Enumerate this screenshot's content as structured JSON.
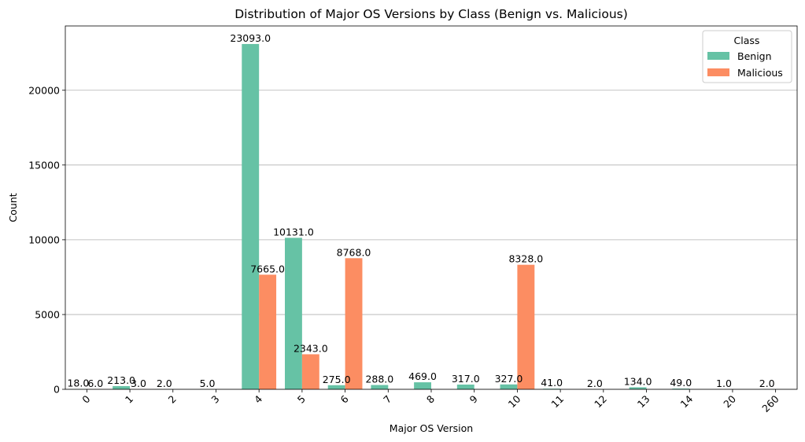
{
  "chart_data": {
    "type": "bar",
    "title": "Distribution of Major OS Versions by Class (Benign vs. Malicious)",
    "xlabel": "Major OS Version",
    "ylabel": "Count",
    "ylim": [
      0,
      24300
    ],
    "yticks": [
      0,
      5000,
      10000,
      15000,
      20000
    ],
    "grid": "y",
    "categories": [
      "0",
      "1",
      "2",
      "3",
      "4",
      "5",
      "6",
      "7",
      "8",
      "9",
      "10",
      "11",
      "12",
      "13",
      "14",
      "20",
      "260"
    ],
    "series": [
      {
        "name": "Benign",
        "color": "#66c2a5",
        "values": [
          18,
          213,
          2,
          5,
          23093,
          10131,
          275,
          288,
          469,
          317,
          327,
          41,
          2,
          134,
          49,
          1,
          2
        ],
        "labels": [
          "18.0",
          "213.0",
          "2.0",
          "5.0",
          "23093.0",
          "10131.0",
          "275.0",
          "288.0",
          "469.0",
          "317.0",
          "327.0",
          "41.0",
          "2.0",
          "134.0",
          "49.0",
          "1.0",
          "2.0"
        ]
      },
      {
        "name": "Malicious",
        "color": "#fc8d62",
        "values": [
          6,
          3,
          null,
          null,
          7665,
          2343,
          8768,
          null,
          null,
          null,
          8328,
          null,
          null,
          null,
          null,
          null,
          null
        ],
        "labels": [
          "6.0",
          "3.0",
          null,
          null,
          "7665.0",
          "2343.0",
          "8768.0",
          null,
          null,
          null,
          "8328.0",
          null,
          null,
          null,
          null,
          null,
          null
        ]
      }
    ],
    "legend": {
      "title": "Class",
      "placement": "top-right"
    }
  }
}
